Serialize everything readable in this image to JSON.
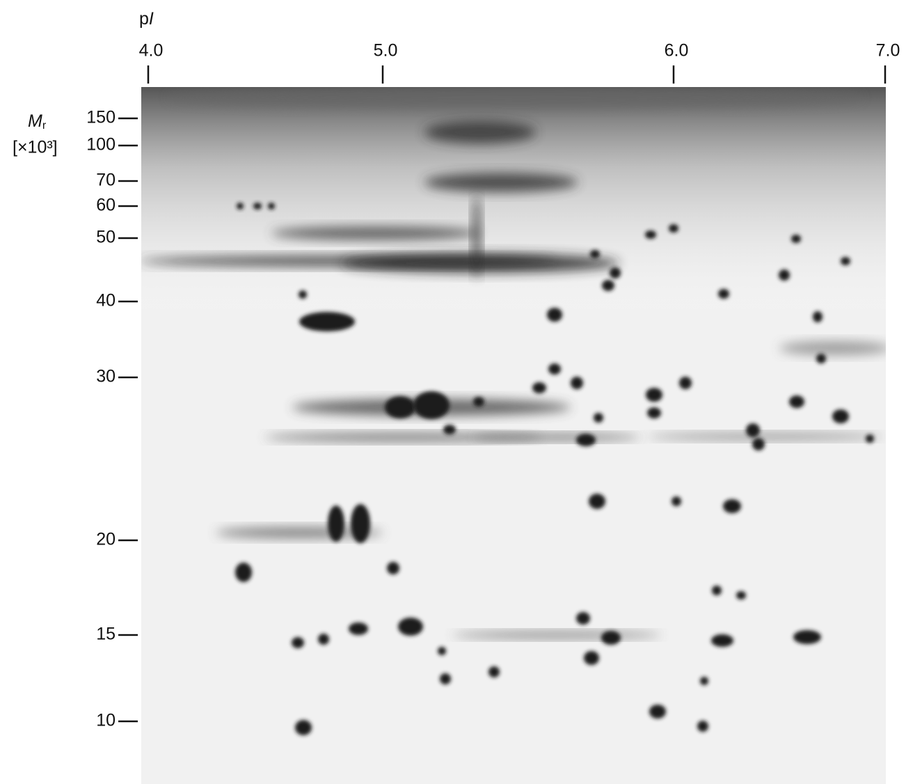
{
  "x_axis": {
    "label": {
      "symbol": "p",
      "italic": "I"
    },
    "ticks": [
      "4.0",
      "5.0",
      "6.0",
      "7.0"
    ]
  },
  "y_axis": {
    "label": {
      "symbol": "M",
      "subscript": "r",
      "unit": "[×10³]"
    },
    "ticks": [
      "150",
      "100",
      "70",
      "60",
      "50",
      "40",
      "30",
      "20",
      "15",
      "10"
    ]
  }
}
